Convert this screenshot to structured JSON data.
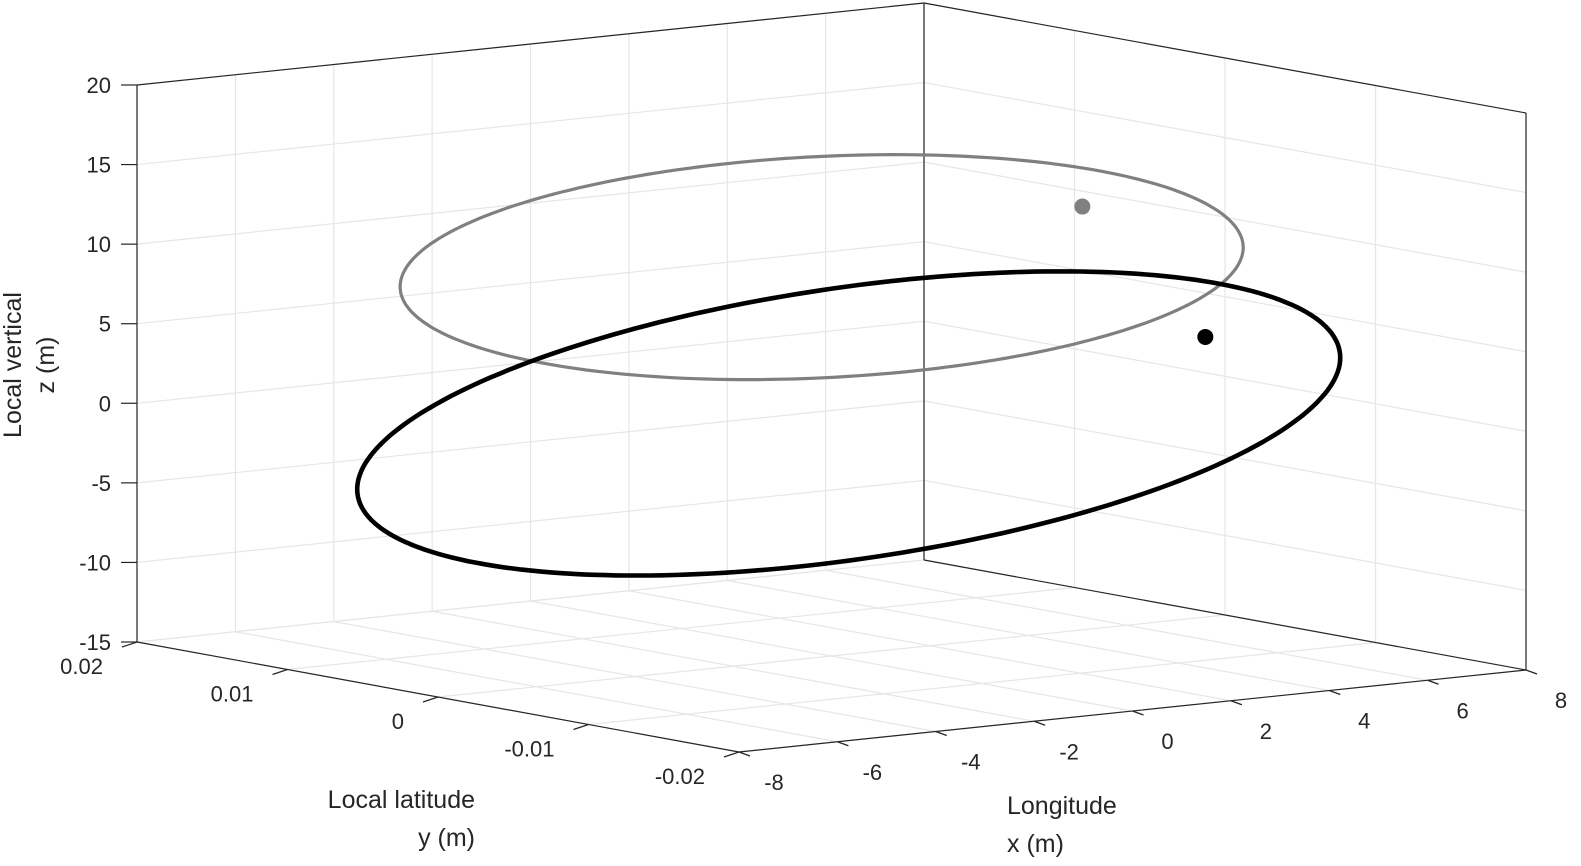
{
  "chart_data": {
    "type": "line3d",
    "grid": true,
    "axes": {
      "x": {
        "label": [
          "Longitude",
          "x (m)"
        ],
        "lim": [
          -8,
          8
        ],
        "ticks": [
          -8,
          -6,
          -4,
          -2,
          0,
          2,
          4,
          6,
          8
        ],
        "tick_labels": [
          "-8",
          "-6",
          "-4",
          "-2",
          "0",
          "2",
          "4",
          "6",
          "8"
        ]
      },
      "y": {
        "label": [
          "Local latitude",
          "y (m)"
        ],
        "lim": [
          -0.02,
          0.02
        ],
        "ticks": [
          -0.02,
          -0.01,
          0,
          0.01,
          0.02
        ],
        "tick_labels": [
          "-0.02",
          "-0.01",
          "0",
          "0.01",
          "0.02"
        ]
      },
      "z": {
        "label": [
          "Local vertical",
          "z (m)"
        ],
        "lim": [
          -15,
          20
        ],
        "ticks": [
          -15,
          -10,
          -5,
          0,
          5,
          10,
          15,
          20
        ],
        "tick_labels": [
          "-15",
          "-10",
          "-5",
          "0",
          "5",
          "10",
          "15",
          "20"
        ]
      }
    },
    "series": [
      {
        "color": "#808080",
        "ellipse": {
          "center": [
            -0.2,
            0.0,
            9.5
          ],
          "semi_axis_x": 6.0,
          "amp_z": 3.9
        },
        "marker": {
          "x": 5.1,
          "y": 0.0,
          "z": 11.6
        }
      },
      {
        "color": "#000000",
        "ellipse": {
          "center": [
            0.35,
            0.0,
            -0.5
          ],
          "semi_axis_x": 7.9,
          "amp_z": 6.0
        },
        "marker": {
          "x": 7.6,
          "y": 0.0,
          "z": 2.6
        }
      }
    ]
  }
}
